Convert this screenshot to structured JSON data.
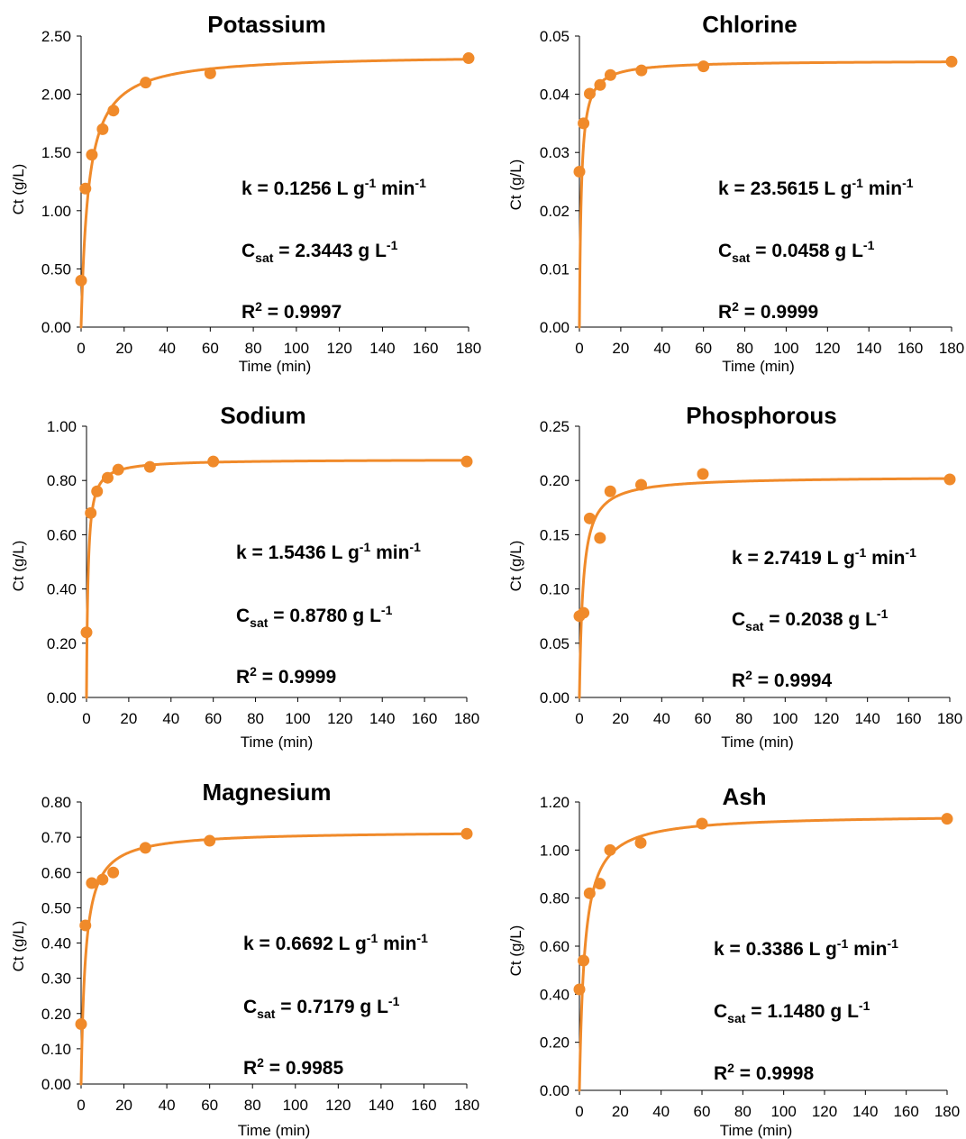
{
  "chart_data": [
    {
      "type": "scatter",
      "title": "Potassium",
      "xlabel": "Time (min)",
      "ylabel": "Ct (g/L)",
      "xlim": [
        0,
        180
      ],
      "ylim": [
        0,
        2.5
      ],
      "x_ticks": [
        "0",
        "20",
        "40",
        "60",
        "80",
        "100",
        "120",
        "140",
        "160",
        "180"
      ],
      "y_ticks": [
        "0.00",
        "0.50",
        "1.00",
        "1.50",
        "2.00",
        "2.50"
      ],
      "grid": false,
      "color": "#f08a2a",
      "series": [
        {
          "x": [
            0,
            2,
            5,
            10,
            15,
            30,
            60,
            180
          ],
          "y": [
            0.4,
            1.19,
            1.48,
            1.7,
            1.86,
            2.1,
            2.18,
            2.31
          ]
        }
      ],
      "fit": {
        "k": 0.1256,
        "csat": 2.3443
      },
      "annotations": {
        "k": {
          "label": "k = ",
          "value": "0.1256",
          "unit_base": "L g",
          "exp1": "-1",
          "unit_mid": " min",
          "exp2": "-1"
        },
        "csat": {
          "label": "C",
          "sub": "sat",
          "value": " = 2.3443 g L",
          "exp": "-1"
        },
        "r2": {
          "label": "R",
          "sup": "2",
          "value": " = 0.9997"
        }
      }
    },
    {
      "type": "scatter",
      "title": "Chlorine",
      "xlabel": "Time (min)",
      "ylabel": "Ct (g/L)",
      "xlim": [
        0,
        180
      ],
      "ylim": [
        0,
        0.05
      ],
      "x_ticks": [
        "0",
        "20",
        "40",
        "60",
        "80",
        "100",
        "120",
        "140",
        "160",
        "180"
      ],
      "y_ticks": [
        "0.00",
        "0.01",
        "0.02",
        "0.03",
        "0.04",
        "0.05"
      ],
      "grid": false,
      "color": "#f08a2a",
      "series": [
        {
          "x": [
            0,
            2,
            5,
            10,
            15,
            30,
            60,
            180
          ],
          "y": [
            0.0267,
            0.035,
            0.0401,
            0.0416,
            0.0433,
            0.0441,
            0.0448,
            0.0456
          ]
        }
      ],
      "fit": {
        "k": 23.5615,
        "csat": 0.0458
      },
      "annotations": {
        "k": {
          "label": "k = ",
          "value": "23.5615",
          "unit_base": "L g",
          "exp1": "-1",
          "unit_mid": " min",
          "exp2": "-1"
        },
        "csat": {
          "label": "C",
          "sub": "sat",
          "value": " = 0.0458 g L",
          "exp": "-1"
        },
        "r2": {
          "label": "R",
          "sup": "2",
          "value": " = 0.9999"
        }
      }
    },
    {
      "type": "scatter",
      "title": "Sodium",
      "xlabel": "Time (min)",
      "ylabel": "Ct  (g/L)",
      "xlim": [
        0,
        180
      ],
      "ylim": [
        0,
        1.0
      ],
      "x_ticks": [
        "0",
        "20",
        "40",
        "60",
        "80",
        "100",
        "120",
        "140",
        "160",
        "180"
      ],
      "y_ticks": [
        "0.00",
        "0.20",
        "0.40",
        "0.60",
        "0.80",
        "1.00"
      ],
      "grid": false,
      "color": "#f08a2a",
      "series": [
        {
          "x": [
            0,
            2,
            5,
            10,
            15,
            30,
            60,
            180
          ],
          "y": [
            0.24,
            0.68,
            0.76,
            0.81,
            0.84,
            0.85,
            0.87,
            0.87
          ]
        }
      ],
      "fit": {
        "k": 1.5436,
        "csat": 0.878
      },
      "annotations": {
        "k": {
          "label": "k = ",
          "value": " 1.5436",
          "unit_base": "L g",
          "exp1": "-1",
          "unit_mid": " min",
          "exp2": "-1"
        },
        "csat": {
          "label": "C",
          "sub": "sat",
          "value": " = 0.8780 g L",
          "exp": "-1"
        },
        "r2": {
          "label": "R",
          "sup": "2",
          "value": " = 0.9999"
        }
      }
    },
    {
      "type": "scatter",
      "title": "Phosphorous",
      "xlabel": "Time (min)",
      "ylabel": "Ct  (g/L)",
      "xlim": [
        0,
        180
      ],
      "ylim": [
        0,
        0.25
      ],
      "x_ticks": [
        "0",
        "20",
        "40",
        "60",
        "80",
        "100",
        "120",
        "140",
        "160",
        "180"
      ],
      "y_ticks": [
        "0.00",
        "0.05",
        "0.10",
        "0.15",
        "0.20",
        "0.25"
      ],
      "grid": false,
      "color": "#f08a2a",
      "series": [
        {
          "x": [
            0,
            2,
            5,
            10,
            15,
            30,
            60,
            180
          ],
          "y": [
            0.075,
            0.078,
            0.165,
            0.147,
            0.19,
            0.196,
            0.206,
            0.201
          ]
        }
      ],
      "fit": {
        "k": 2.7419,
        "csat": 0.2038
      },
      "annotations": {
        "k": {
          "label": "k = ",
          "value": " 2.7419",
          "unit_base": "L g",
          "exp1": "-1",
          "unit_mid": " min",
          "exp2": "-1"
        },
        "csat": {
          "label": "C",
          "sub": "sat",
          "value": " = 0.2038 g L",
          "exp": "-1"
        },
        "r2": {
          "label": "R",
          "sup": "2",
          "value": " = 0.9994"
        }
      }
    },
    {
      "type": "scatter",
      "title": "Magnesium",
      "xlabel": "Time (min)",
      "ylabel": "Ct (g/L)",
      "xlim": [
        0,
        180
      ],
      "ylim": [
        0,
        0.8
      ],
      "x_ticks": [
        "0",
        "20",
        "40",
        "60",
        "80",
        "100",
        "120",
        "140",
        "160",
        "180"
      ],
      "y_ticks": [
        "0.00",
        "0.10",
        "0.20",
        "0.30",
        "0.40",
        "0.50",
        "0.60",
        "0.70",
        "0.80"
      ],
      "grid": false,
      "color": "#f08a2a",
      "series": [
        {
          "x": [
            0,
            2,
            5,
            10,
            15,
            30,
            60,
            180
          ],
          "y": [
            0.17,
            0.45,
            0.57,
            0.58,
            0.6,
            0.67,
            0.69,
            0.71
          ]
        }
      ],
      "fit": {
        "k": 0.6692,
        "csat": 0.7179
      },
      "annotations": {
        "k": {
          "label": "k = ",
          "value": "0.6692",
          "unit_base": "L g",
          "exp1": "-1",
          "unit_mid": " min",
          "exp2": "-1"
        },
        "csat": {
          "label": "C",
          "sub": "sat",
          "value": " = 0.7179 g L",
          "exp": "-1"
        },
        "r2": {
          "label": "R",
          "sup": "2",
          "value": " = 0.9985"
        }
      }
    },
    {
      "type": "scatter",
      "title": "Ash",
      "xlabel": "Time (min)",
      "ylabel": "Ct (g/L)",
      "xlim": [
        0,
        180
      ],
      "ylim": [
        0,
        1.2
      ],
      "x_ticks": [
        "0",
        "20",
        "40",
        "60",
        "80",
        "100",
        "120",
        "140",
        "160",
        "180"
      ],
      "y_ticks": [
        "0.00",
        "0.20",
        "0.40",
        "0.60",
        "0.80",
        "1.00",
        "1.20"
      ],
      "grid": false,
      "color": "#f08a2a",
      "series": [
        {
          "x": [
            0,
            2,
            5,
            10,
            15,
            30,
            60,
            180
          ],
          "y": [
            0.42,
            0.54,
            0.82,
            0.86,
            1.0,
            1.03,
            1.11,
            1.13
          ]
        }
      ],
      "fit": {
        "k": 0.3386,
        "csat": 1.148
      },
      "annotations": {
        "k": {
          "label": "k = ",
          "value": "0.3386",
          "unit_base": "L g",
          "exp1": "-1",
          "unit_mid": " min",
          "exp2": "-1"
        },
        "csat": {
          "label": "C",
          "sub": "sat",
          "value": " = 1.1480 g L",
          "exp": "-1"
        },
        "r2": {
          "label": "R",
          "sup": "2",
          "value": " = 0.9998"
        }
      }
    }
  ]
}
